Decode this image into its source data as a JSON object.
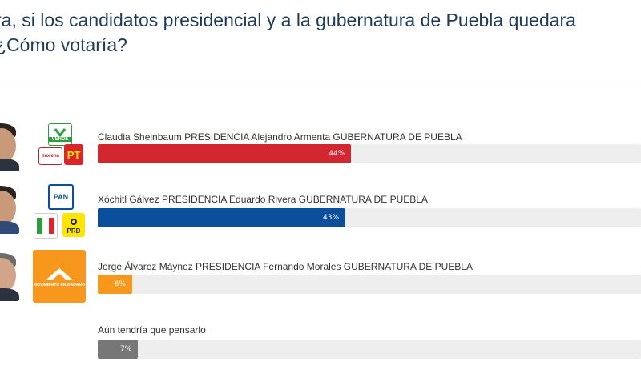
{
  "question": {
    "line1": "ra, si los candidatos presidencial y a la gubernatura de Puebla quedara",
    "line2": "¿Cómo votaría?"
  },
  "colors": {
    "title": "#1f3b5a",
    "red": "#d22630",
    "blue": "#0b4f9c",
    "orange": "#f7981d",
    "gray": "#777777",
    "track": "#eeeeee"
  },
  "options": [
    {
      "label": "Claudia Sheinbaum PRESIDENCIA Alejandro Armenta GUBERNATURA DE PUEBLA",
      "percent": 44,
      "percent_label": "44%",
      "color": "#d22630",
      "party_logos": [
        {
          "icon": "verde-logo",
          "text": "VERDE"
        },
        {
          "icon": "morena-logo",
          "text": "morena"
        },
        {
          "icon": "pt-logo",
          "text": "PT"
        }
      ]
    },
    {
      "label": "Xóchitl Gálvez PRESIDENCIA Eduardo Rivera GUBERNATURA DE PUEBLA",
      "percent": 43,
      "percent_label": "43%",
      "color": "#0b4f9c",
      "party_logos": [
        {
          "icon": "pan-logo",
          "text": "PAN"
        },
        {
          "icon": "pri-logo",
          "text": "PRI"
        },
        {
          "icon": "prd-logo",
          "text": "PRD"
        }
      ]
    },
    {
      "label": "Jorge Álvarez Máynez PRESIDENCIA Fernando Morales GUBERNATURA DE PUEBLA",
      "percent": 6,
      "percent_label": "6%",
      "color": "#f7981d",
      "party_logos": [
        {
          "icon": "movimiento-ciudadano-logo",
          "text": "MOVIMIENTO CIUDADANO"
        }
      ]
    },
    {
      "label": "Aún tendría que pensarlo",
      "percent": 7,
      "percent_label": "7%",
      "color": "#777777",
      "party_logos": []
    }
  ]
}
